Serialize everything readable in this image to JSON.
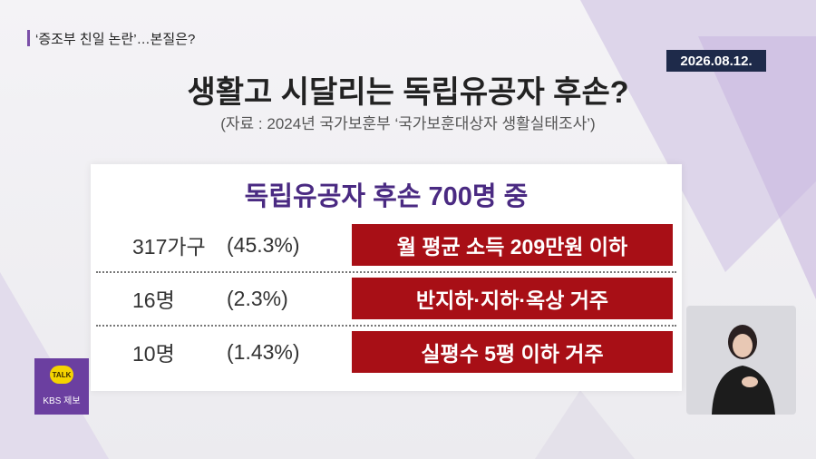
{
  "top_tag": "‘증조부 친일 논란’…본질은?",
  "date": "2026.08.12.",
  "title": "생활고 시달리는 독립유공자 후손?",
  "source": "(자료 : 2024년 국가보훈부 ‘국가보훈대상자 생활실태조사’)",
  "card": {
    "heading": "독립유공자 후손 700명 중",
    "rows": [
      {
        "count": "317가구",
        "percent": "(45.3%)",
        "description": "월 평균 소득 209만원 이하"
      },
      {
        "count": "16명",
        "percent": "(2.3%)",
        "description": "반지하·지하·옥상 거주"
      },
      {
        "count": "10명",
        "percent": "(1.43%)",
        "description": "실평수 5평 이하 거주"
      }
    ]
  },
  "badge": {
    "icon": "TALK",
    "label": "KBS 제보"
  }
}
